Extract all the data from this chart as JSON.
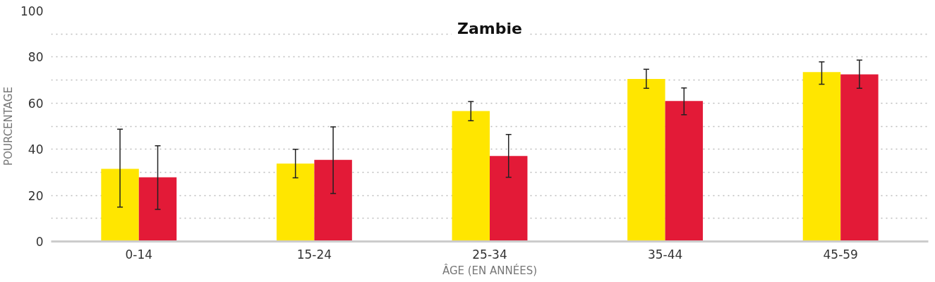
{
  "chart_data": {
    "type": "bar",
    "title": "Zambie",
    "xlabel": "ÂGE (EN ANNÉES)",
    "ylabel": "POURCENTAGE",
    "categories": [
      "0-14",
      "15-24",
      "25-34",
      "35-44",
      "45-59"
    ],
    "series": [
      {
        "color": "#ffe600",
        "values": [
          31.5,
          33.8,
          56.6,
          70.5,
          73.5
        ],
        "errors": [
          [
            14.9,
            48.7
          ],
          [
            27.6,
            40
          ],
          [
            52.4,
            60.7
          ],
          [
            66.4,
            74.7
          ],
          [
            68.2,
            77.9
          ]
        ]
      },
      {
        "color": "#e31a37",
        "values": [
          27.8,
          35.4,
          37.1,
          60.9,
          72.5
        ],
        "errors": [
          [
            13.9,
            41.5
          ],
          [
            20.8,
            49.7
          ],
          [
            27.8,
            46.4
          ],
          [
            55,
            66.6
          ],
          [
            66.4,
            78.7
          ]
        ]
      }
    ],
    "ylim": [
      0,
      100
    ],
    "yticks": [
      0,
      {
        "value": 10,
        "label": null
      },
      20,
      {
        "value": 30,
        "label": null
      },
      40,
      {
        "value": 50,
        "label": null
      },
      60,
      {
        "value": 70,
        "label": null
      },
      80,
      {
        "value": 90,
        "label": null
      },
      100
    ],
    "grid": "y"
  }
}
